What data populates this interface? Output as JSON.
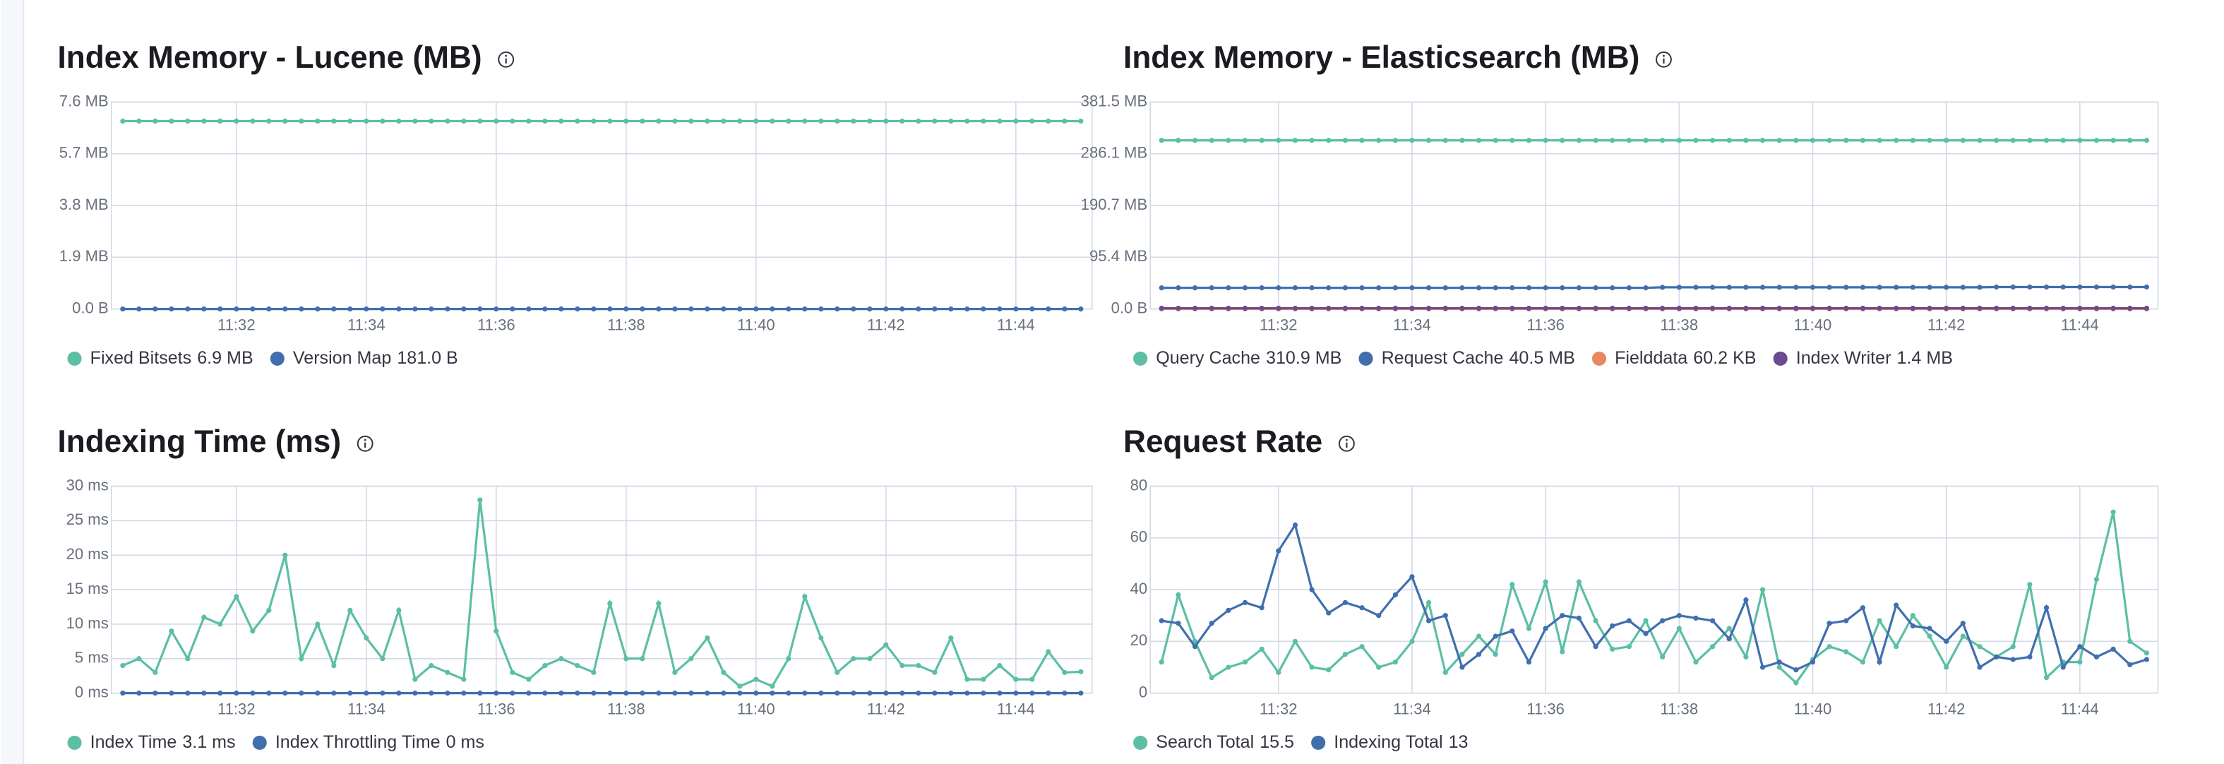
{
  "chart_data": [
    {
      "type": "line",
      "title": "Index Memory - Lucene (MB)",
      "categories": [
        null,
        null,
        null,
        null,
        null,
        null,
        null,
        "11:32",
        null,
        null,
        null,
        null,
        null,
        null,
        null,
        "11:34",
        null,
        null,
        null,
        null,
        null,
        null,
        null,
        "11:36",
        null,
        null,
        null,
        null,
        null,
        null,
        null,
        "11:38",
        null,
        null,
        null,
        null,
        null,
        null,
        null,
        "11:40",
        null,
        null,
        null,
        null,
        null,
        null,
        null,
        "11:42",
        null,
        null,
        null,
        null,
        null,
        null,
        null,
        "11:44",
        null,
        null,
        null,
        null
      ],
      "ylim": [
        0,
        7.6
      ],
      "yticks": [
        {
          "value": 0,
          "label": "0.0 B"
        },
        {
          "value": 1.9,
          "label": "1.9 MB"
        },
        {
          "value": 3.8,
          "label": "3.8 MB"
        },
        {
          "value": 5.7,
          "label": "5.7 MB"
        },
        {
          "value": 7.6,
          "label": "7.6 MB"
        }
      ],
      "grid": true,
      "series": [
        {
          "name": "Fixed Bitsets",
          "legend_value": "6.9 MB",
          "color": "#5cbfa5",
          "values": [
            6.9,
            6.9,
            6.9,
            6.9,
            6.9,
            6.9,
            6.9,
            6.9,
            6.9,
            6.9,
            6.9,
            6.9,
            6.9,
            6.9,
            6.9,
            6.9,
            6.9,
            6.9,
            6.9,
            6.9,
            6.9,
            6.9,
            6.9,
            6.9,
            6.9,
            6.9,
            6.9,
            6.9,
            6.9,
            6.9,
            6.9,
            6.9,
            6.9,
            6.9,
            6.9,
            6.9,
            6.9,
            6.9,
            6.9,
            6.9,
            6.9,
            6.9,
            6.9,
            6.9,
            6.9,
            6.9,
            6.9,
            6.9,
            6.9,
            6.9,
            6.9,
            6.9,
            6.9,
            6.9,
            6.9,
            6.9,
            6.9,
            6.9,
            6.9,
            6.9
          ]
        },
        {
          "name": "Version Map",
          "legend_value": "181.0 B",
          "color": "#416fae",
          "values": [
            0.0002,
            0.0002,
            0.0002,
            0.0002,
            0.0002,
            0.0002,
            0.0002,
            0.0002,
            0.0002,
            0.0002,
            0.0002,
            0.0002,
            0.0002,
            0.0002,
            0.0002,
            0.0002,
            0.0002,
            0.0002,
            0.0002,
            0.0002,
            0.0002,
            0.0002,
            0.0002,
            0.0002,
            0.0002,
            0.0002,
            0.0002,
            0.0002,
            0.0002,
            0.0002,
            0.0002,
            0.0002,
            0.0002,
            0.0002,
            0.0002,
            0.0002,
            0.0002,
            0.0002,
            0.0002,
            0.0002,
            0.0002,
            0.0002,
            0.0002,
            0.0002,
            0.0002,
            0.0002,
            0.0002,
            0.0002,
            0.0002,
            0.0002,
            0.0002,
            0.0002,
            0.0002,
            0.0002,
            0.0002,
            0.0002,
            0.0002,
            0.0002,
            0.0002,
            0.0002
          ]
        }
      ]
    },
    {
      "type": "line",
      "title": "Index Memory - Elasticsearch (MB)",
      "categories": [
        null,
        null,
        null,
        null,
        null,
        null,
        null,
        "11:32",
        null,
        null,
        null,
        null,
        null,
        null,
        null,
        "11:34",
        null,
        null,
        null,
        null,
        null,
        null,
        null,
        "11:36",
        null,
        null,
        null,
        null,
        null,
        null,
        null,
        "11:38",
        null,
        null,
        null,
        null,
        null,
        null,
        null,
        "11:40",
        null,
        null,
        null,
        null,
        null,
        null,
        null,
        "11:42",
        null,
        null,
        null,
        null,
        null,
        null,
        null,
        "11:44",
        null,
        null,
        null,
        null
      ],
      "ylim": [
        0,
        381.5
      ],
      "yticks": [
        {
          "value": 0,
          "label": "0.0 B"
        },
        {
          "value": 95.4,
          "label": "95.4 MB"
        },
        {
          "value": 190.7,
          "label": "190.7 MB"
        },
        {
          "value": 286.1,
          "label": "286.1 MB"
        },
        {
          "value": 381.5,
          "label": "381.5 MB"
        }
      ],
      "grid": true,
      "series": [
        {
          "name": "Query Cache",
          "legend_value": "310.9 MB",
          "color": "#5cbfa5",
          "values": [
            310.9,
            310.9,
            310.9,
            310.9,
            310.9,
            310.9,
            310.9,
            310.9,
            310.9,
            310.9,
            310.9,
            310.9,
            310.9,
            310.9,
            310.9,
            310.9,
            310.9,
            310.9,
            310.9,
            310.9,
            310.9,
            310.9,
            310.9,
            310.9,
            310.9,
            310.9,
            310.9,
            310.9,
            310.9,
            310.9,
            310.9,
            310.9,
            310.9,
            310.9,
            310.9,
            310.9,
            310.9,
            310.9,
            310.9,
            310.9,
            310.9,
            310.9,
            310.9,
            310.9,
            310.9,
            310.9,
            310.9,
            310.9,
            310.9,
            310.9,
            310.9,
            310.9,
            310.9,
            310.9,
            310.9,
            310.9,
            310.9,
            310.9,
            310.9,
            310.9
          ]
        },
        {
          "name": "Request Cache",
          "legend_value": "40.5 MB",
          "color": "#416fae",
          "values": [
            39,
            39,
            39,
            39,
            39,
            39,
            39,
            39,
            39,
            39,
            39,
            39,
            39,
            39,
            39,
            39,
            39,
            39,
            39,
            39,
            39,
            39,
            39,
            39,
            39,
            39,
            39,
            39,
            39,
            39,
            40,
            40,
            40,
            40,
            40,
            40,
            40,
            40,
            40,
            40,
            40,
            40,
            40,
            40,
            40,
            40,
            40,
            40,
            40,
            40,
            40.5,
            40.5,
            40.5,
            40.5,
            40.5,
            40.5,
            40.5,
            40.5,
            40.5,
            40.5
          ]
        },
        {
          "name": "Fielddata",
          "legend_value": "60.2 KB",
          "color": "#e7885e",
          "values": [
            0.06,
            0.06,
            0.06,
            0.06,
            0.06,
            0.06,
            0.06,
            0.06,
            0.06,
            0.06,
            0.06,
            0.06,
            0.06,
            0.06,
            0.06,
            0.06,
            0.06,
            0.06,
            0.06,
            0.06,
            0.06,
            0.06,
            0.06,
            0.06,
            0.06,
            0.06,
            0.06,
            0.06,
            0.06,
            0.06,
            0.06,
            0.06,
            0.06,
            0.06,
            0.06,
            0.06,
            0.06,
            0.06,
            0.06,
            0.06,
            0.06,
            0.06,
            0.06,
            0.06,
            0.06,
            0.06,
            0.06,
            0.06,
            0.06,
            0.06,
            0.06,
            0.06,
            0.06,
            0.06,
            0.06,
            0.06,
            0.06,
            0.06,
            0.06,
            0.06
          ]
        },
        {
          "name": "Index Writer",
          "legend_value": "1.4 MB",
          "color": "#6b4c93",
          "values": [
            1.4,
            1.4,
            1.4,
            1.4,
            1.4,
            1.4,
            1.4,
            1.4,
            1.4,
            1.4,
            1.4,
            1.4,
            1.4,
            1.4,
            1.4,
            1.4,
            1.4,
            1.4,
            1.4,
            1.4,
            1.4,
            1.4,
            1.4,
            1.4,
            1.4,
            1.4,
            1.4,
            1.4,
            1.4,
            1.4,
            1.4,
            1.4,
            1.4,
            1.4,
            1.4,
            1.4,
            1.4,
            1.4,
            1.4,
            1.4,
            1.4,
            1.4,
            1.4,
            1.4,
            1.4,
            1.4,
            1.4,
            1.4,
            1.4,
            1.4,
            1.4,
            1.4,
            1.4,
            1.4,
            1.4,
            1.4,
            1.4,
            1.4,
            1.4,
            1.4
          ]
        }
      ]
    },
    {
      "type": "line",
      "title": "Indexing Time (ms)",
      "categories": [
        null,
        null,
        null,
        null,
        null,
        null,
        null,
        "11:32",
        null,
        null,
        null,
        null,
        null,
        null,
        null,
        "11:34",
        null,
        null,
        null,
        null,
        null,
        null,
        null,
        "11:36",
        null,
        null,
        null,
        null,
        null,
        null,
        null,
        "11:38",
        null,
        null,
        null,
        null,
        null,
        null,
        null,
        "11:40",
        null,
        null,
        null,
        null,
        null,
        null,
        null,
        "11:42",
        null,
        null,
        null,
        null,
        null,
        null,
        null,
        "11:44",
        null,
        null,
        null,
        null
      ],
      "ylim": [
        0,
        30
      ],
      "yticks": [
        {
          "value": 0,
          "label": "0 ms"
        },
        {
          "value": 5,
          "label": "5 ms"
        },
        {
          "value": 10,
          "label": "10 ms"
        },
        {
          "value": 15,
          "label": "15 ms"
        },
        {
          "value": 20,
          "label": "20 ms"
        },
        {
          "value": 25,
          "label": "25 ms"
        },
        {
          "value": 30,
          "label": "30 ms"
        }
      ],
      "grid": true,
      "series": [
        {
          "name": "Index Time",
          "legend_value": "3.1 ms",
          "color": "#5cbfa5",
          "values": [
            4,
            5,
            3,
            9,
            5,
            11,
            10,
            14,
            9,
            12,
            20,
            5,
            10,
            4,
            12,
            8,
            5,
            12,
            2,
            4,
            3,
            2,
            28,
            9,
            3,
            2,
            4,
            5,
            4,
            3,
            13,
            5,
            5,
            13,
            3,
            5,
            8,
            3,
            1,
            2,
            1,
            5,
            14,
            8,
            3,
            5,
            5,
            7,
            4,
            4,
            3,
            8,
            2,
            2,
            4,
            2,
            2,
            6,
            3,
            3.1
          ]
        },
        {
          "name": "Index Throttling Time",
          "legend_value": "0 ms",
          "color": "#416fae",
          "values": [
            0,
            0,
            0,
            0,
            0,
            0,
            0,
            0,
            0,
            0,
            0,
            0,
            0,
            0,
            0,
            0,
            0,
            0,
            0,
            0,
            0,
            0,
            0,
            0,
            0,
            0,
            0,
            0,
            0,
            0,
            0,
            0,
            0,
            0,
            0,
            0,
            0,
            0,
            0,
            0,
            0,
            0,
            0,
            0,
            0,
            0,
            0,
            0,
            0,
            0,
            0,
            0,
            0,
            0,
            0,
            0,
            0,
            0,
            0,
            0
          ]
        }
      ]
    },
    {
      "type": "line",
      "title": "Request Rate",
      "categories": [
        null,
        null,
        null,
        null,
        null,
        null,
        null,
        "11:32",
        null,
        null,
        null,
        null,
        null,
        null,
        null,
        "11:34",
        null,
        null,
        null,
        null,
        null,
        null,
        null,
        "11:36",
        null,
        null,
        null,
        null,
        null,
        null,
        null,
        "11:38",
        null,
        null,
        null,
        null,
        null,
        null,
        null,
        "11:40",
        null,
        null,
        null,
        null,
        null,
        null,
        null,
        "11:42",
        null,
        null,
        null,
        null,
        null,
        null,
        null,
        "11:44",
        null,
        null,
        null,
        null
      ],
      "ylim": [
        0,
        80
      ],
      "yticks": [
        0,
        20,
        40,
        60,
        80
      ],
      "grid": true,
      "series": [
        {
          "name": "Search Total",
          "legend_value": "15.5",
          "color": "#5cbfa5",
          "values": [
            12,
            38,
            20,
            6,
            10,
            12,
            17,
            8,
            20,
            10,
            9,
            15,
            18,
            10,
            12,
            20,
            35,
            8,
            15,
            22,
            15,
            42,
            25,
            43,
            16,
            43,
            28,
            17,
            18,
            28,
            14,
            25,
            12,
            18,
            25,
            14,
            40,
            10,
            4,
            13,
            18,
            16,
            12,
            28,
            18,
            30,
            22,
            10,
            22,
            18,
            14,
            18,
            42,
            6,
            12,
            12,
            44,
            70,
            20,
            15.5
          ]
        },
        {
          "name": "Indexing Total",
          "legend_value": "13",
          "color": "#416fae",
          "values": [
            28,
            27,
            18,
            27,
            32,
            35,
            33,
            55,
            65,
            40,
            31,
            35,
            33,
            30,
            38,
            45,
            28,
            30,
            10,
            15,
            22,
            24,
            12,
            25,
            30,
            29,
            18,
            26,
            28,
            23,
            28,
            30,
            29,
            28,
            21,
            36,
            10,
            12,
            9,
            12,
            27,
            28,
            33,
            12,
            34,
            26,
            25,
            20,
            27,
            10,
            14,
            13,
            14,
            33,
            10,
            18,
            14,
            17,
            11,
            13
          ]
        }
      ]
    }
  ]
}
